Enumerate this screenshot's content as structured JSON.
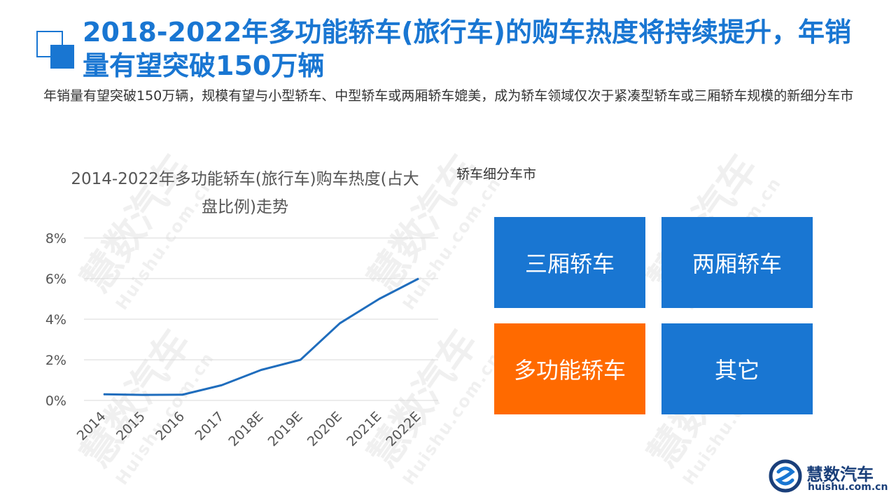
{
  "header": {
    "title": "2018-2022年多功能轿车(旅行车)的购车热度将持续提升，年销量有望突破150万辆",
    "subtitle": "年销量有望突破150万辆，规模有望与小型轿车、中型轿车或两厢轿车媲美，成为轿车领域仅次于紧凑型轿车或三厢轿车规模的新细分车市"
  },
  "watermark": {
    "cn": "慧数汽车",
    "en": "Huishu.com.cn"
  },
  "chart_data": {
    "type": "line",
    "title": "2014-2022年多功能轿车(旅行车)购车热度(占大盘比例)走势",
    "categories": [
      "2014",
      "2015",
      "2016",
      "2017",
      "2018E",
      "2019E",
      "2020E",
      "2021E",
      "2022E"
    ],
    "series": [
      {
        "values": [
          0.3,
          0.27,
          0.28,
          0.75,
          1.5,
          2.0,
          3.8,
          5.0,
          6.0
        ]
      }
    ],
    "ylim": [
      0,
      8
    ],
    "yticks": [
      "0%",
      "2%",
      "4%",
      "6%",
      "8%"
    ],
    "y_unit": "%",
    "grid": true,
    "line_color": "#1f6dbd"
  },
  "segments": {
    "title": "轿车细分车市",
    "tiles": [
      {
        "label": "三厢轿车",
        "color": "#1976d2"
      },
      {
        "label": "两厢轿车",
        "color": "#1976d2"
      },
      {
        "label": "多功能轿车",
        "color": "#ff6a00"
      },
      {
        "label": "其它",
        "color": "#1976d2"
      }
    ]
  },
  "logo": {
    "name": "慧数汽车",
    "url": "huishu.com.cn"
  }
}
